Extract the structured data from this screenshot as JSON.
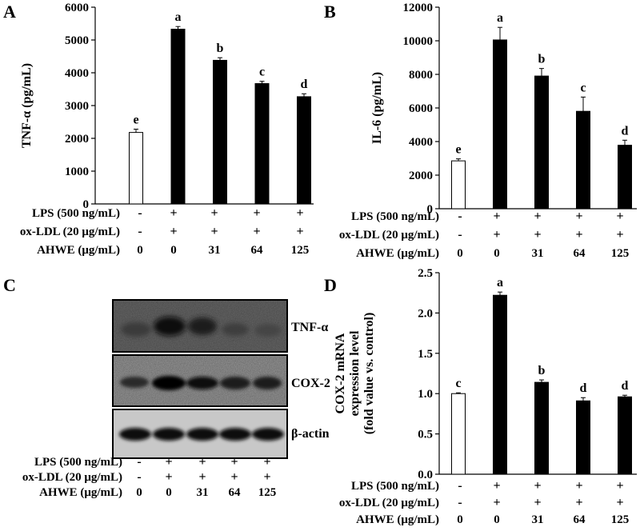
{
  "panels": {
    "A": "A",
    "B": "B",
    "C": "C",
    "D": "D"
  },
  "conditions": {
    "labels": [
      "LPS (500 ng/mL)",
      "ox-LDL (20 μg/mL)",
      "AHWE (μg/mL)"
    ],
    "lps": [
      "-",
      "+",
      "+",
      "+",
      "+"
    ],
    "oxldl": [
      "-",
      "+",
      "+",
      "+",
      "+"
    ],
    "ahwe": [
      "0",
      "0",
      "31",
      "64",
      "125"
    ]
  },
  "blot": {
    "bands": [
      "TNF-α",
      "COX-2",
      "β-actin"
    ]
  },
  "colors": {
    "control_bar": "#ffffff",
    "treated_bar": "#000000",
    "axis": "#000000"
  },
  "chart_data": [
    {
      "panel": "A",
      "type": "bar",
      "ylabel": "TNF-α (pg/mL)",
      "ylim": [
        0,
        6000
      ],
      "yticks": [
        0,
        1000,
        2000,
        3000,
        4000,
        5000,
        6000
      ],
      "series": [
        {
          "values": [
            2180,
            5330,
            4380,
            3670,
            3270
          ],
          "errors": [
            100,
            80,
            80,
            70,
            90
          ],
          "letters": [
            "e",
            "a",
            "b",
            "c",
            "d"
          ]
        }
      ]
    },
    {
      "panel": "B",
      "type": "bar",
      "ylabel": "IL-6 (pg/mL)",
      "ylim": [
        0,
        12000
      ],
      "yticks": [
        0,
        2000,
        4000,
        6000,
        8000,
        10000,
        12000
      ],
      "series": [
        {
          "values": [
            2850,
            10050,
            7900,
            5800,
            3780
          ],
          "errors": [
            120,
            750,
            450,
            850,
            300
          ],
          "letters": [
            "e",
            "a",
            "b",
            "c",
            "d"
          ]
        }
      ]
    },
    {
      "panel": "D",
      "type": "bar",
      "ylabel": "COX-2 mRNA expression level (fold value vs. control)",
      "ylabel_lines": [
        "COX-2 mRNA",
        "expression level",
        "(fold value vs. control)"
      ],
      "ylim": [
        0,
        2.5
      ],
      "yticks": [
        "0.0",
        "0.5",
        "1.0",
        "1.5",
        "2.0",
        "2.5"
      ],
      "series": [
        {
          "values": [
            1.0,
            2.22,
            1.14,
            0.91,
            0.96
          ],
          "errors": [
            0.01,
            0.04,
            0.03,
            0.04,
            0.02
          ],
          "letters": [
            "c",
            "a",
            "b",
            "d",
            "d"
          ]
        }
      ]
    }
  ]
}
